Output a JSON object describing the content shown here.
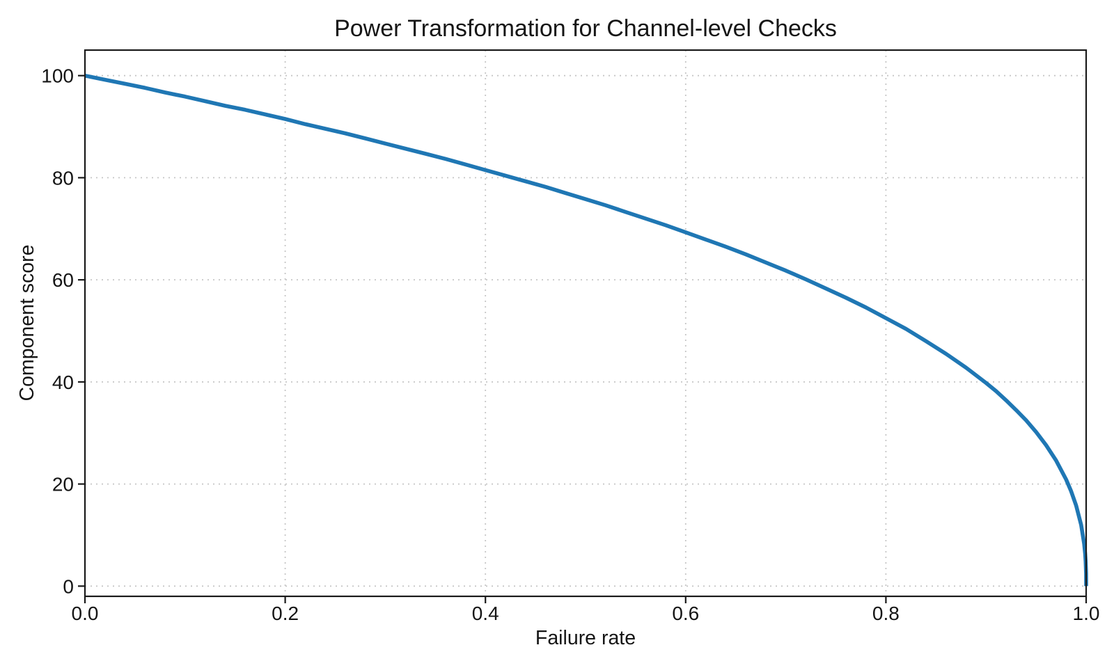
{
  "chart_data": {
    "type": "line",
    "title": "Power Transformation for Channel-level Checks",
    "xlabel": "Failure rate",
    "ylabel": "Component score",
    "xlim": [
      0,
      1
    ],
    "ylim": [
      -2,
      105
    ],
    "grid": {
      "visible": true,
      "style": "dotted"
    },
    "legend": null,
    "xticks": {
      "values": [
        0,
        0.2,
        0.4,
        0.6,
        0.8,
        1.0
      ],
      "labels": [
        "0.0",
        "0.2",
        "0.4",
        "0.6",
        "0.8",
        "1.0"
      ]
    },
    "yticks": {
      "values": [
        0,
        20,
        40,
        60,
        80,
        100
      ],
      "labels": [
        "0",
        "20",
        "40",
        "60",
        "80",
        "100"
      ]
    },
    "colors": {
      "line": "#1f77b4",
      "grid": "#c6c6c6",
      "axis": "#1a1a1a",
      "text": "#151515",
      "background": "#ffffff"
    },
    "series": [
      {
        "name": "Component score vs failure rate",
        "color": "#1f77b4",
        "linewidth": 5.6,
        "x": [
          0,
          0.02,
          0.04,
          0.06,
          0.08,
          0.1,
          0.12,
          0.14,
          0.16,
          0.18,
          0.2,
          0.22,
          0.24,
          0.26,
          0.28,
          0.3,
          0.32,
          0.34,
          0.36,
          0.38,
          0.4,
          0.42,
          0.44,
          0.46,
          0.48,
          0.5,
          0.52,
          0.54,
          0.56,
          0.58,
          0.6,
          0.62,
          0.64,
          0.66,
          0.68,
          0.7,
          0.72,
          0.74,
          0.76,
          0.78,
          0.8,
          0.82,
          0.84,
          0.86,
          0.88,
          0.9,
          0.91,
          0.92,
          0.93,
          0.94,
          0.95,
          0.96,
          0.97,
          0.98,
          0.985,
          0.99,
          0.995,
          0.998,
          0.999,
          0.9995,
          0.9999,
          1.0
        ],
        "y": [
          100.0,
          99.2,
          98.4,
          97.6,
          96.7,
          95.9,
          95.0,
          94.1,
          93.3,
          92.4,
          91.5,
          90.5,
          89.6,
          88.7,
          87.7,
          86.7,
          85.7,
          84.7,
          83.7,
          82.6,
          81.5,
          80.4,
          79.3,
          78.2,
          77.0,
          75.8,
          74.6,
          73.3,
          72.0,
          70.7,
          69.3,
          67.9,
          66.5,
          65.0,
          63.4,
          61.8,
          60.1,
          58.3,
          56.5,
          54.6,
          52.5,
          50.4,
          48.0,
          45.5,
          42.8,
          39.8,
          38.2,
          36.4,
          34.5,
          32.5,
          30.2,
          27.6,
          24.6,
          20.9,
          18.6,
          15.8,
          12.0,
          8.3,
          6.3,
          4.8,
          2.5,
          0.0
        ]
      }
    ]
  }
}
